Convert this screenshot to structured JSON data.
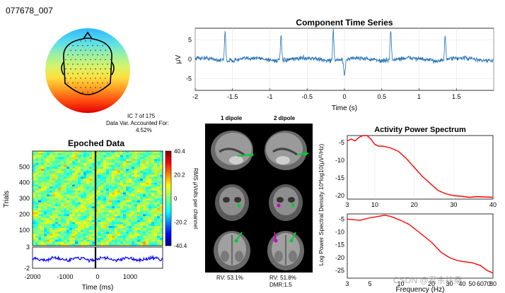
{
  "figure_id": "077678_007",
  "ic_info": {
    "line1": "IC 7 of 175",
    "line2": "Data Var. Accounted For:",
    "line3": "4.52%"
  },
  "time_series": {
    "title": "Component Time Series",
    "ylabel": "μV",
    "xlabel": "Time (s)",
    "xticks": [
      "-2",
      "-1.5",
      "-1",
      "-0.5",
      "0",
      "0.5",
      "1",
      "1.5"
    ],
    "yticks": [
      "5",
      "0",
      "-5"
    ]
  },
  "epoched": {
    "title": "Epoched Data",
    "ylabel": "Trials",
    "xlabel": "Time (ms)",
    "yticks": [
      "500",
      "400",
      "300",
      "200",
      "100"
    ],
    "erp_yticks": [
      "3",
      "-2"
    ],
    "xticks": [
      "-2000",
      "-1000",
      "0",
      "1000"
    ],
    "colorbar_label": "RMS μVolts per channel",
    "colorbar_ticks": [
      "40.4",
      "20.2",
      "0",
      "-20.2",
      "-40.4"
    ]
  },
  "dipole": {
    "label1": "1 dipole",
    "label2": "2 dipole",
    "rv1": "RV: 53.1%",
    "rv2": "RV: 51.8%",
    "dmr": "DMR:1.5"
  },
  "spectrum": {
    "title": "Activity Power Spectrum",
    "ylabel": "Log Power Spectral Density 10*log10(μV²/Hz)",
    "xlabel": "Frequency (Hz)",
    "top_yticks": [
      "-5",
      "-10",
      "-15",
      "-20"
    ],
    "top_xticks": [
      "3",
      "10",
      "20",
      "30",
      "40"
    ],
    "bottom_yticks": [
      "-5",
      "-10",
      "-15",
      "-20",
      "-25"
    ],
    "bottom_xticks": [
      "3",
      "5",
      "10",
      "20",
      "30",
      "40",
      "50",
      "60",
      "70",
      "80"
    ]
  },
  "watermark": "CSDN @君余扶桑",
  "colors": {
    "signal": "#1f6fb4",
    "erp": "#0000ff",
    "psd": "#ff0000",
    "dipole_green": "#00cc33",
    "dipole_magenta": "#cc00cc"
  },
  "chart_data": [
    {
      "type": "line",
      "title": "Component Time Series",
      "xlabel": "Time (s)",
      "ylabel": "μV",
      "xlim": [
        -2,
        2
      ],
      "ylim": [
        -8,
        8
      ],
      "spikes": [
        {
          "x": -1.6,
          "y": 7.5
        },
        {
          "x": -0.85,
          "y": 6.5
        },
        {
          "x": -0.15,
          "y": 7.8
        },
        {
          "x": 0.62,
          "y": 7.8
        },
        {
          "x": 1.35,
          "y": 6.0
        }
      ],
      "dips": [
        {
          "x": 0.0,
          "y": -4.5
        }
      ],
      "noise_level": 1.0
    },
    {
      "type": "line",
      "title": "Activity Power Spectrum (top, linear freq)",
      "xlabel": "Frequency (Hz)",
      "ylabel": "Log Power Spectral Density 10*log10(μV²/Hz)",
      "xlim": [
        3,
        40
      ],
      "ylim": [
        -21,
        -3
      ],
      "x": [
        3,
        4,
        5,
        6,
        7,
        8,
        9,
        10,
        11,
        12,
        14,
        16,
        18,
        20,
        22,
        24,
        26,
        28,
        30,
        32,
        34,
        36,
        38,
        40
      ],
      "y": [
        -4.5,
        -4,
        -4.5,
        -3.5,
        -3,
        -3,
        -4,
        -5.5,
        -6,
        -6,
        -6.5,
        -7.5,
        -9.5,
        -12,
        -14.5,
        -16.5,
        -18.5,
        -19.5,
        -20,
        -20.2,
        -20.5,
        -20.3,
        -20.4,
        -20.5
      ]
    },
    {
      "type": "line",
      "title": "Activity Power Spectrum (bottom, log freq)",
      "xlabel": "Frequency (Hz)",
      "xlim": [
        3,
        80
      ],
      "ylim": [
        -28,
        -3
      ],
      "x": [
        3,
        4,
        5,
        6,
        7,
        8,
        10,
        12,
        15,
        20,
        25,
        30,
        35,
        40,
        50,
        60,
        70,
        80
      ],
      "y": [
        -5,
        -5.5,
        -4.5,
        -4,
        -3.5,
        -4,
        -5.5,
        -7,
        -10,
        -14,
        -18,
        -20,
        -21,
        -21.5,
        -22,
        -23,
        -25,
        -26
      ]
    },
    {
      "type": "heatmap",
      "title": "Epoched Data",
      "xlabel": "Time (ms)",
      "ylabel": "Trials",
      "xlim": [
        -2000,
        2000
      ],
      "ylim": [
        1,
        600
      ],
      "clim": [
        -40.4,
        40.4
      ],
      "erp_ylim": [
        -2,
        3
      ]
    }
  ]
}
